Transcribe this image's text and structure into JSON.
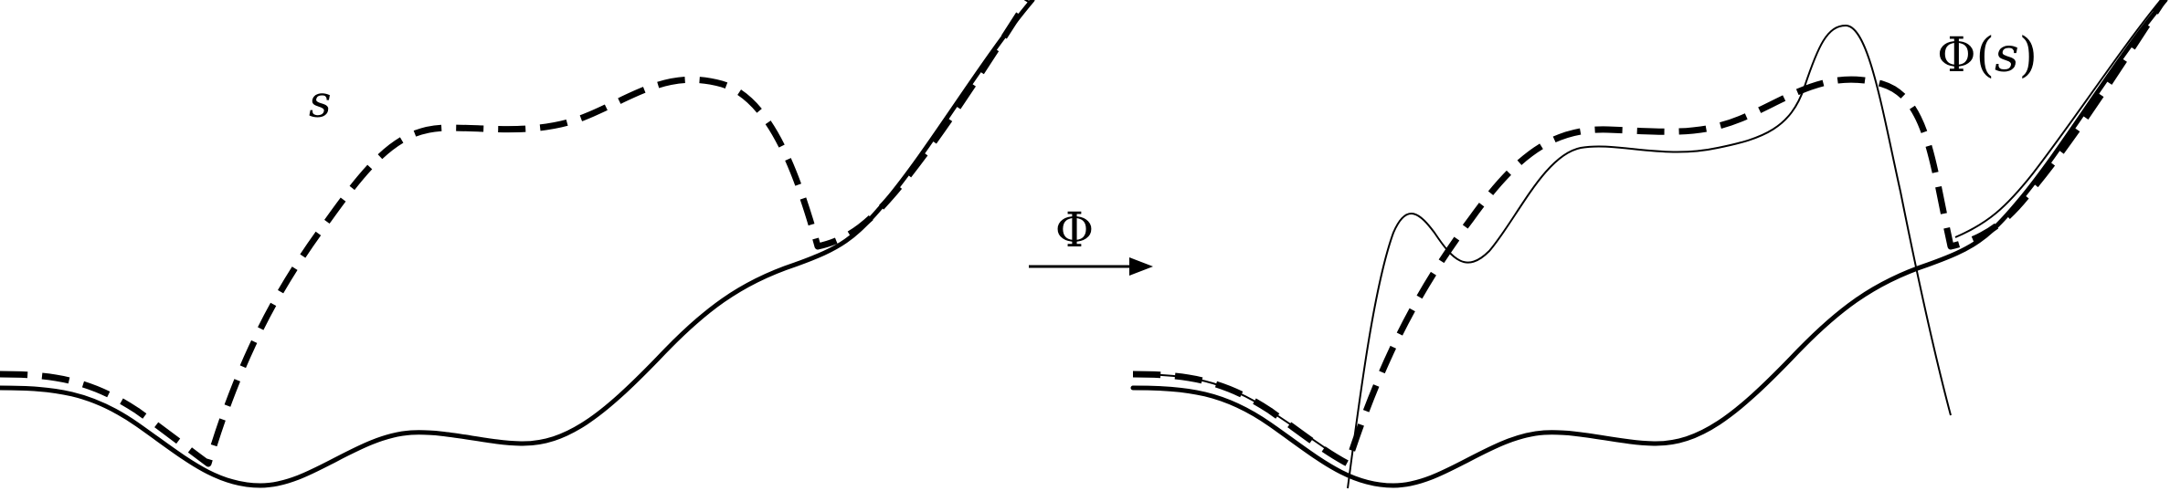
{
  "labels": {
    "left_curve": "s",
    "map_symbol": "Φ",
    "right_curve_phi": "Φ",
    "right_curve_paren_open": "(",
    "right_curve_arg": "s",
    "right_curve_paren_close": ")"
  },
  "colors": {
    "stroke": "#000000",
    "background": "#ffffff"
  }
}
